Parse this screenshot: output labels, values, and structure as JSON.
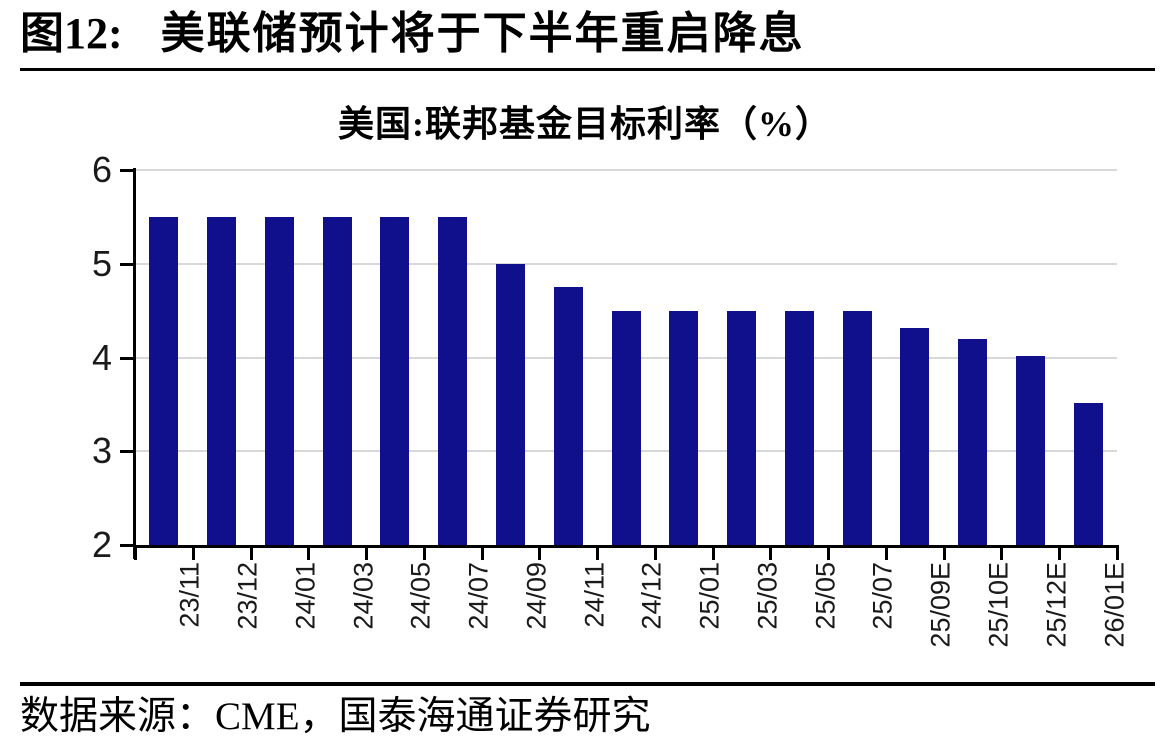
{
  "figure": {
    "label": "图12:",
    "title": "美联储预计将于下半年重启降息"
  },
  "source": {
    "text": "数据来源：CME，国泰海通证券研究"
  },
  "colors": {
    "bar": "#10108C",
    "grid": "#D8D8D8",
    "axis": "#000000"
  },
  "chart_data": {
    "type": "bar",
    "title": "美国:联邦基金目标利率（%）",
    "categories": [
      "23/11",
      "23/12",
      "24/01",
      "24/03",
      "24/05",
      "24/07",
      "24/09",
      "24/11",
      "24/12",
      "25/01",
      "25/03",
      "25/05",
      "25/07",
      "25/09E",
      "25/10E",
      "25/12E",
      "26/01E"
    ],
    "values": [
      5.5,
      5.5,
      5.5,
      5.5,
      5.5,
      5.5,
      5.0,
      4.75,
      4.5,
      4.5,
      4.5,
      4.5,
      4.5,
      4.32,
      4.2,
      4.02,
      3.52
    ],
    "xlabel": "",
    "ylabel": "",
    "ylim": [
      2,
      6
    ],
    "yticks": [
      2,
      3,
      4,
      5,
      6
    ],
    "grid": "horizontal",
    "legend_position": "none",
    "bar_color": "#10108C"
  }
}
